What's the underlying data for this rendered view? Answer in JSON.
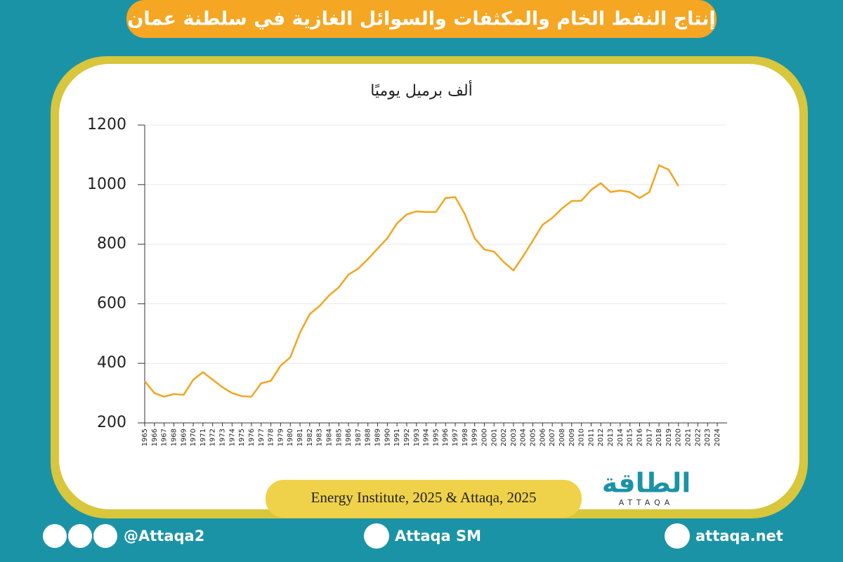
{
  "chart_data": {
    "type": "line",
    "title": "إنتاج النفط الخام والمكثفات والسوائل الغازية في سلطنة عمان",
    "subtitle": "ألف برميل يوميًا",
    "source": "Energy Institute, 2025 & Attaqa, 2025",
    "categories": [
      "1965",
      "1966",
      "1967",
      "1968",
      "1969",
      "1970",
      "1971",
      "1972",
      "1973",
      "1974",
      "1975",
      "1976",
      "1977",
      "1978",
      "1979",
      "1980",
      "1981",
      "1982",
      "1983",
      "1984",
      "1985",
      "1986",
      "1987",
      "1988",
      "1989",
      "1990",
      "1991",
      "1992",
      "1993",
      "1994",
      "1995",
      "1996",
      "1997",
      "1998",
      "1999",
      "2000",
      "2001",
      "2002",
      "2003",
      "2004",
      "2005",
      "2006",
      "2007",
      "2008",
      "2009",
      "2010",
      "2011",
      "2012",
      "2013",
      "2014",
      "2015",
      "2016",
      "2017",
      "2018",
      "2019",
      "2020",
      "2021",
      "2022",
      "2023",
      "2024"
    ],
    "values": [
      340,
      300,
      288,
      297,
      294,
      345,
      370,
      345,
      320,
      300,
      290,
      288,
      333,
      341,
      392,
      420,
      503,
      565,
      592,
      628,
      655,
      698,
      718,
      750,
      785,
      820,
      870,
      900,
      910,
      908,
      908,
      955,
      958,
      900,
      820,
      782,
      775,
      740,
      712,
      760,
      812,
      865,
      888,
      920,
      945,
      946,
      982,
      1005,
      975,
      980,
      975,
      955,
      975,
      1065,
      1050,
      995,
      null,
      null,
      null,
      null
    ],
    "color": "#f2a51f",
    "ylim": [
      200,
      1200
    ],
    "yticks": [
      200,
      400,
      600,
      800,
      1000,
      1200
    ],
    "grid": true
  },
  "footer": {
    "handle": "@Attaqa2",
    "channel": "Attaqa SM",
    "site": "attaqa.net",
    "logo": "الطاقة",
    "logo_latin": "ATTAQA"
  }
}
